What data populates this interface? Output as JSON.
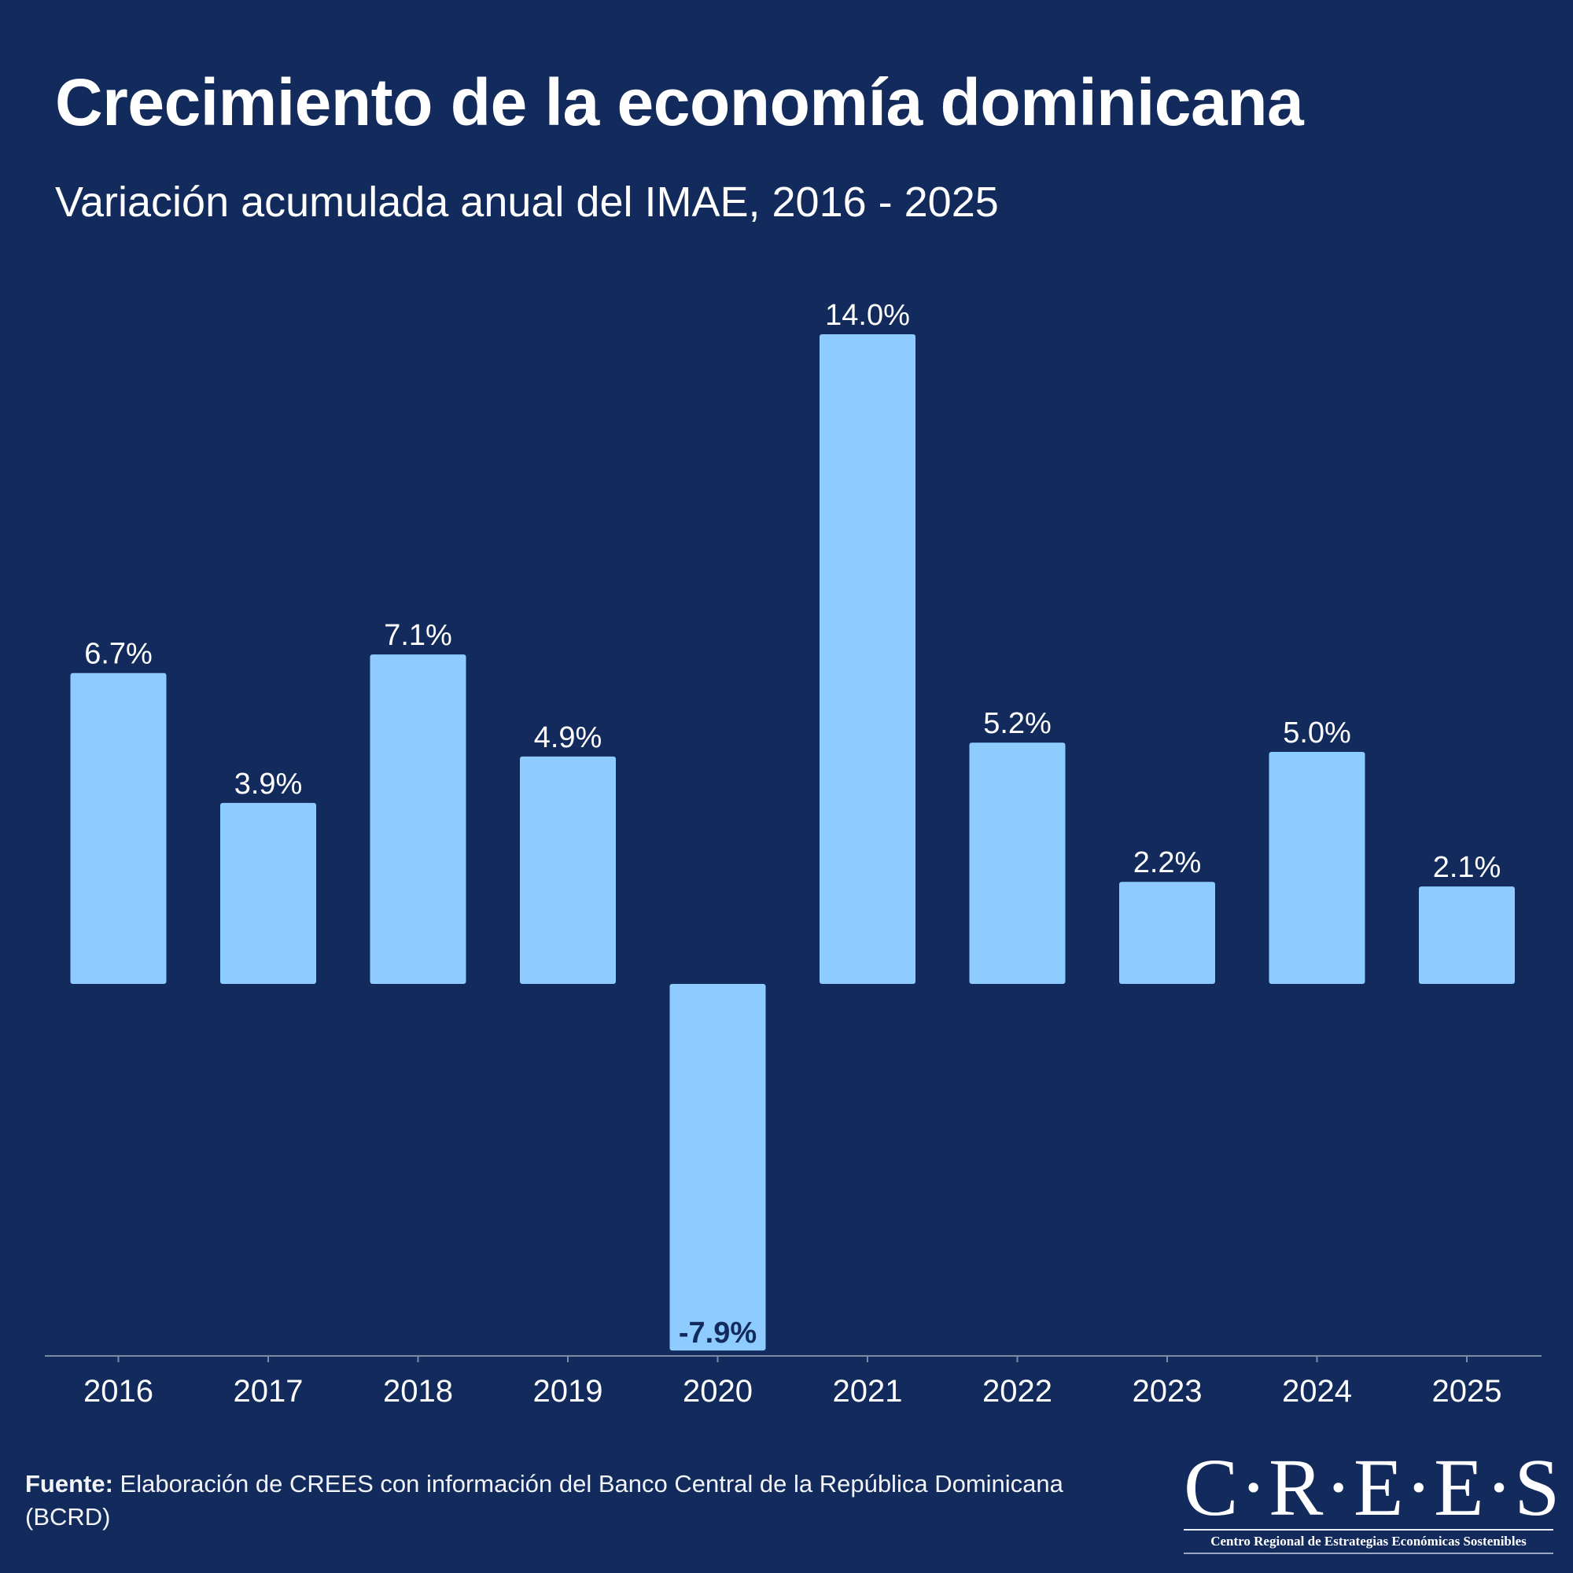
{
  "chart_data": {
    "type": "bar",
    "title": "Crecimiento de la economía dominicana",
    "subtitle": "Variación acumulada anual del IMAE, 2016 - 2025",
    "xlabel": "",
    "ylabel": "",
    "categories": [
      "2016",
      "2017",
      "2018",
      "2019",
      "2020",
      "2021",
      "2022",
      "2023",
      "2024",
      "2025"
    ],
    "values": [
      6.7,
      3.9,
      7.1,
      4.9,
      -7.9,
      14.0,
      5.2,
      2.2,
      5.0,
      2.1
    ],
    "labels": [
      "6.7%",
      "3.9%",
      "7.1%",
      "4.9%",
      "-7.9%",
      "14.0%",
      "5.2%",
      "2.2%",
      "5.0%",
      "2.1%"
    ],
    "ylim": [
      -7.9,
      14.0
    ],
    "grid": false,
    "legend": "none",
    "colors": {
      "background": "#122b5c",
      "bar": "#8ecbfe",
      "axis": "#7d8aa3",
      "negative_label": "#122b5c"
    }
  },
  "footer": {
    "source_label": "Fuente:",
    "source_text": " Elaboración de CREES con información del Banco Central de la República Dominicana (BCRD)"
  },
  "logo": {
    "mark": "C·R·E·E·S",
    "tagline": "Centro Regional de Estrategias Económicas Sostenibles"
  }
}
